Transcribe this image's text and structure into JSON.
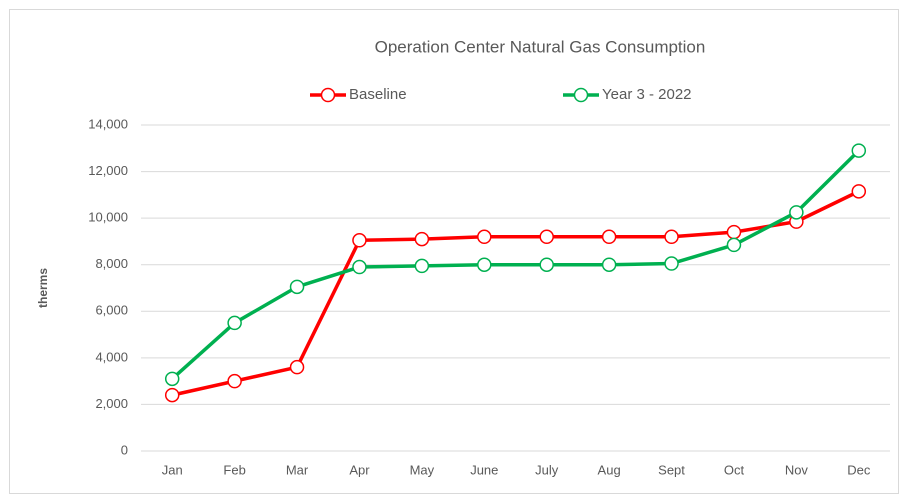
{
  "chart_data": {
    "type": "line",
    "title": "Operation Center Natural Gas Consumption",
    "y_label": "therms",
    "categories": [
      "Jan",
      "Feb",
      "Mar",
      "Apr",
      "May",
      "June",
      "July",
      "Aug",
      "Sept",
      "Oct",
      "Nov",
      "Dec"
    ],
    "series": [
      {
        "name": "Baseline",
        "color": "#ff0000",
        "values": [
          2400,
          3000,
          3600,
          9050,
          9100,
          9200,
          9200,
          9200,
          9200,
          9400,
          9850,
          11150
        ]
      },
      {
        "name": "Year 3 - 2022",
        "color": "#00b050",
        "values": [
          3100,
          5500,
          7050,
          7900,
          7950,
          8000,
          8000,
          8000,
          8050,
          8850,
          10250,
          12900
        ]
      }
    ],
    "ylim": [
      0,
      14000
    ],
    "yticks": [
      0,
      {
        "value": 2000,
        "label": "2,000"
      },
      {
        "value": 4000,
        "label": "4,000"
      },
      {
        "value": 6000,
        "label": "6,000"
      },
      {
        "value": 8000,
        "label": "8,000"
      },
      {
        "value": 10000,
        "label": "10,000"
      },
      {
        "value": 12000,
        "label": "12,000"
      },
      {
        "value": 14000,
        "label": "14,000"
      }
    ],
    "grid": true,
    "legend": "top"
  }
}
